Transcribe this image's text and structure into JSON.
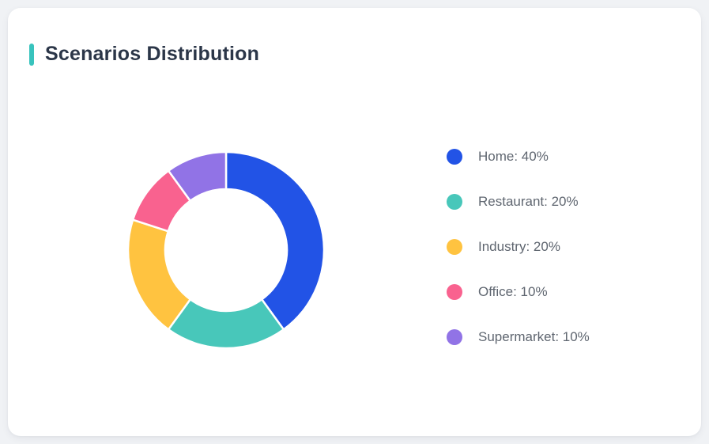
{
  "page": {
    "background_color": "#f0f2f5"
  },
  "card": {
    "title": "Scenarios Distribution",
    "accent_color": "#38c3bd",
    "background_color": "#ffffff",
    "title_color": "#2b3648"
  },
  "chart_data": {
    "type": "pie",
    "donut": true,
    "title": "Scenarios Distribution",
    "categories": [
      "Home",
      "Restaurant",
      "Industry",
      "Office",
      "Supermarket"
    ],
    "values": [
      40,
      20,
      20,
      10,
      10
    ],
    "unit": "%",
    "colors": [
      "#2253e6",
      "#48c7ba",
      "#ffc340",
      "#f9628f",
      "#9173e6"
    ],
    "legend_labels": [
      "Home: 40%",
      "Restaurant: 20%",
      "Industry: 20%",
      "Office: 10%",
      "Supermarket: 10%"
    ],
    "start_angle_deg": 0,
    "direction": "clockwise",
    "inner_radius_ratio": 0.62,
    "gap_color": "#ffffff",
    "legend_position": "right",
    "legend_text_color": "#5f6670"
  }
}
